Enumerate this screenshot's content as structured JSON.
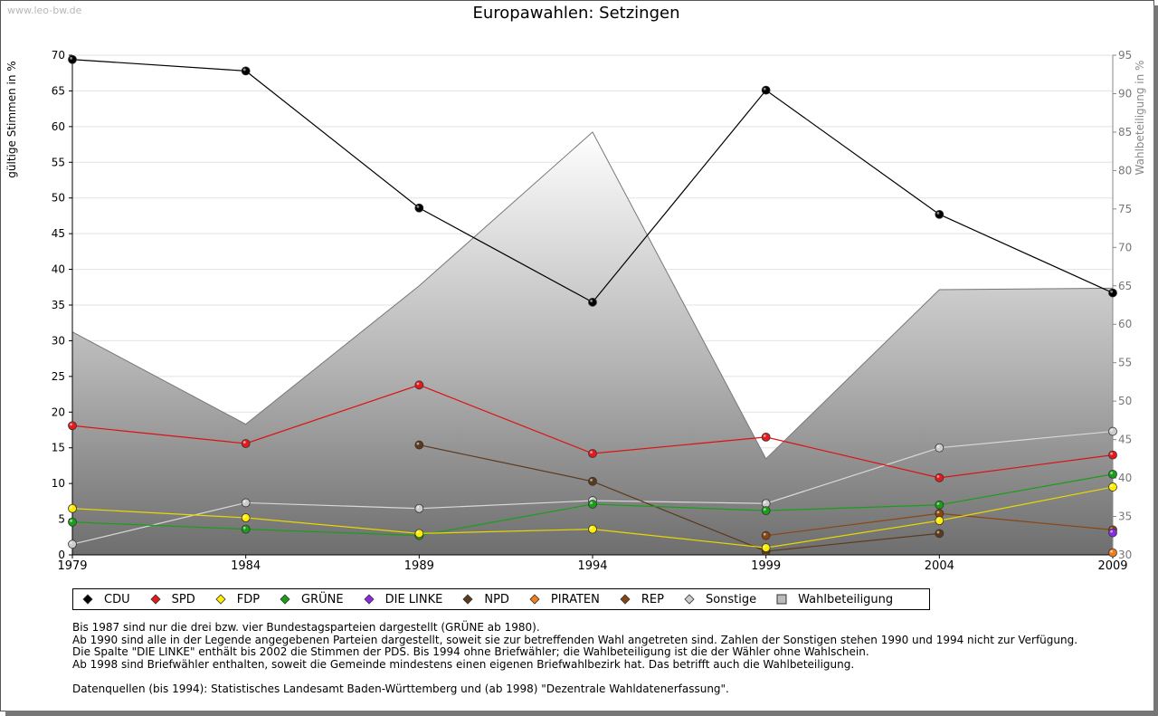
{
  "watermark": "www.leo-bw.de",
  "chart_data": {
    "type": "line",
    "title": "Europawahlen: Setzingen",
    "ylabel": "gültige Stimmen in %",
    "y2label": "Wahlbeteiligung in %",
    "x": [
      1979,
      1984,
      1989,
      1994,
      1999,
      2004,
      2009
    ],
    "ylim": [
      0,
      70
    ],
    "yticks": [
      0,
      5,
      10,
      15,
      20,
      25,
      30,
      35,
      40,
      45,
      50,
      55,
      60,
      65,
      70
    ],
    "y2lim": [
      30,
      95
    ],
    "y2ticks": [
      30,
      35,
      40,
      45,
      50,
      55,
      60,
      65,
      70,
      75,
      80,
      85,
      90,
      95
    ],
    "grid": true,
    "area": {
      "name": "Wahlbeteiligung",
      "color": "#999999",
      "values": [
        59.0,
        47.0,
        65.0,
        85.0,
        42.5,
        64.5,
        64.7
      ]
    },
    "series": [
      {
        "name": "CDU",
        "color": "#000000",
        "line": "#000000",
        "values": [
          69.4,
          67.8,
          48.6,
          35.4,
          65.1,
          47.7,
          36.7
        ]
      },
      {
        "name": "SPD",
        "color": "#e41a1c",
        "line": "#dd1111",
        "values": [
          18.1,
          15.6,
          23.8,
          14.2,
          16.5,
          10.8,
          14.0
        ]
      },
      {
        "name": "FDP",
        "color": "#ffee00",
        "line": "#e6d800",
        "values": [
          6.5,
          5.2,
          3.0,
          3.6,
          1.0,
          4.8,
          9.5
        ]
      },
      {
        "name": "GRÜNE",
        "color": "#1a9e1a",
        "line": "#1a9e1a",
        "values": [
          4.6,
          3.6,
          2.7,
          7.1,
          6.2,
          7.0,
          11.3
        ]
      },
      {
        "name": "DIE LINKE",
        "color": "#8a2be2",
        "line": "#8a2be2",
        "values": [
          null,
          null,
          null,
          null,
          null,
          null,
          3.1
        ]
      },
      {
        "name": "NPD",
        "color": "#5c3a1e",
        "line": "#5c3a1e",
        "values": [
          null,
          null,
          15.4,
          10.3,
          0.5,
          3.0,
          null
        ]
      },
      {
        "name": "PIRATEN",
        "color": "#f07f1a",
        "line": "#f07f1a",
        "values": [
          null,
          null,
          null,
          null,
          null,
          null,
          0.3
        ]
      },
      {
        "name": "REP",
        "color": "#8b4513",
        "line": "#8b4513",
        "values": [
          null,
          null,
          null,
          null,
          2.7,
          5.8,
          3.5
        ]
      },
      {
        "name": "Sonstige",
        "color": "#cccccc",
        "line": "#d8d8d8",
        "values": [
          1.5,
          7.3,
          6.5,
          7.6,
          7.2,
          15.0,
          17.3
        ]
      }
    ]
  },
  "legend": [
    {
      "label": "CDU",
      "color": "#000000",
      "shape": "diamond"
    },
    {
      "label": "SPD",
      "color": "#e41a1c",
      "shape": "diamond"
    },
    {
      "label": "FDP",
      "color": "#ffee00",
      "shape": "diamond"
    },
    {
      "label": "GRÜNE",
      "color": "#1a9e1a",
      "shape": "diamond"
    },
    {
      "label": "DIE LINKE",
      "color": "#8a2be2",
      "shape": "diamond"
    },
    {
      "label": "NPD",
      "color": "#5c3a1e",
      "shape": "diamond"
    },
    {
      "label": "PIRATEN",
      "color": "#f07f1a",
      "shape": "diamond"
    },
    {
      "label": "REP",
      "color": "#8b4513",
      "shape": "diamond"
    },
    {
      "label": "Sonstige",
      "color": "#cccccc",
      "shape": "diamond"
    },
    {
      "label": "Wahlbeteiligung",
      "color": "#bbbbbb",
      "shape": "square"
    }
  ],
  "notes": {
    "line1": "Bis 1987 sind nur die drei bzw. vier Bundestagsparteien dargestellt (GRÜNE ab 1980).",
    "line2": "Ab 1990 sind alle in der Legende angegebenen Parteien dargestellt, soweit sie zur betreffenden Wahl angetreten sind. Zahlen der Sonstigen stehen 1990 und 1994 nicht zur Verfügung.",
    "line3": "Die Spalte \"DIE LINKE\" enthält bis 2002 die Stimmen der PDS. Bis 1994 ohne Briefwähler; die Wahlbeteiligung ist die der Wähler ohne Wahlschein.",
    "line4": "Ab 1998 sind Briefwähler enthalten, soweit die Gemeinde mindestens einen eigenen Briefwahlbezirk hat. Das betrifft auch die Wahlbeteiligung.",
    "line5": "Datenquellen (bis 1994): Statistisches Landesamt Baden-Württemberg und (ab 1998) \"Dezentrale Wahldatenerfassung\"."
  }
}
